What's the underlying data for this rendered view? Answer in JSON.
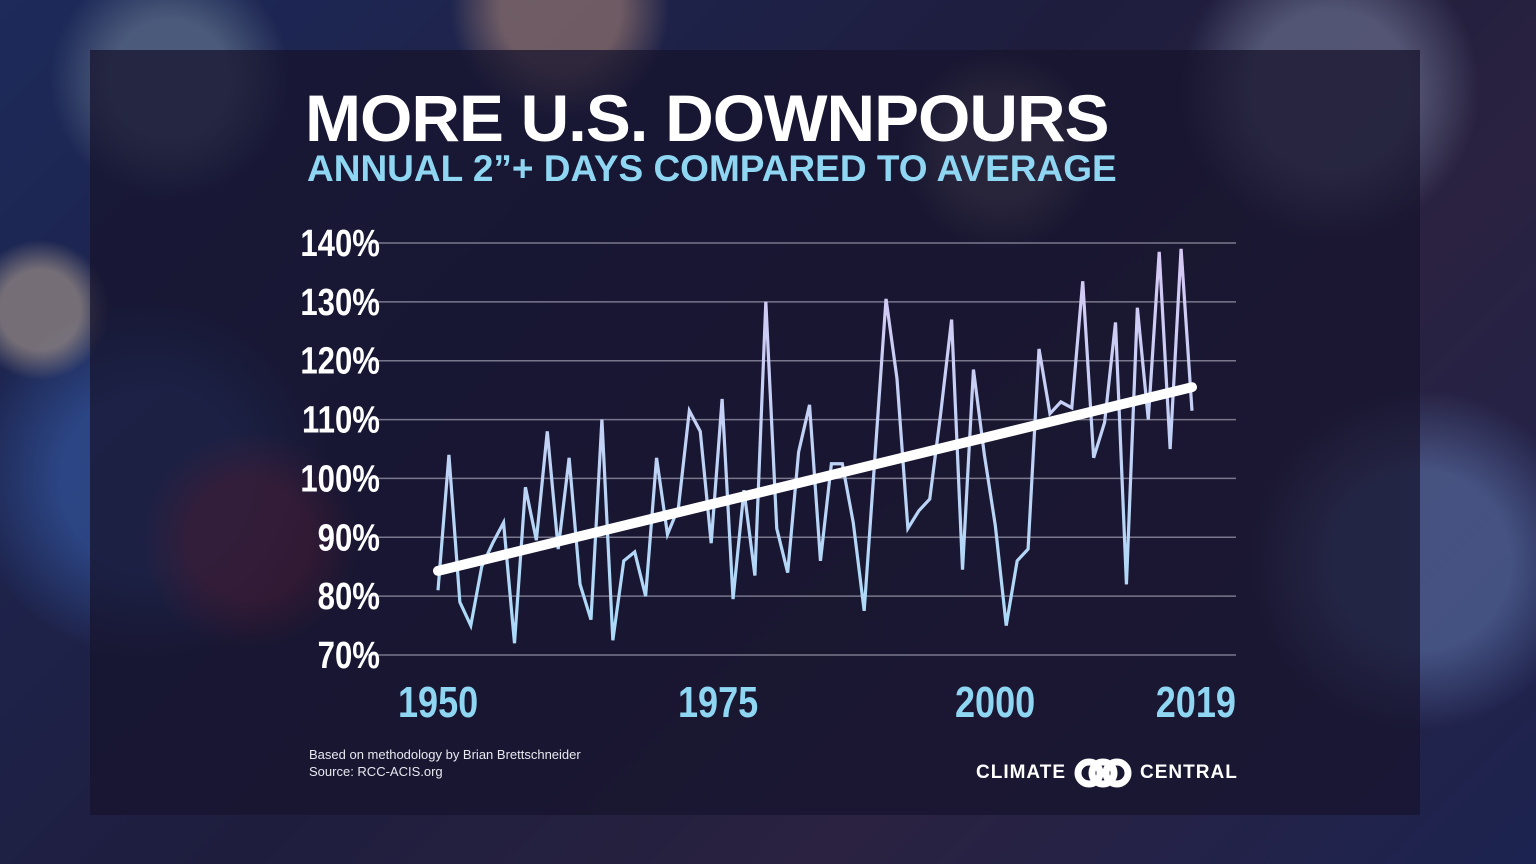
{
  "chart_data": {
    "type": "line",
    "title": "MORE U.S. DOWNPOURS",
    "subtitle": "ANNUAL 2”+ DAYS COMPARED TO AVERAGE",
    "xlabel": "",
    "ylabel": "",
    "x_range": [
      1950,
      2019
    ],
    "ylim": [
      70,
      140
    ],
    "y_ticks": [
      "70%",
      "80%",
      "90%",
      "100%",
      "110%",
      "120%",
      "130%",
      "140%"
    ],
    "y_tick_values": [
      70,
      80,
      90,
      100,
      110,
      120,
      130,
      140
    ],
    "x_ticks": [
      "1950",
      "1975",
      "2000",
      "2019"
    ],
    "x_tick_values": [
      1950,
      1975,
      2000,
      2019
    ],
    "grid": "horizontal",
    "series": [
      {
        "x": [
          1950,
          1951,
          1952,
          1953,
          1954,
          1955,
          1956,
          1957,
          1958,
          1959,
          1960,
          1961,
          1962,
          1963,
          1964,
          1965,
          1966,
          1967,
          1968,
          1969,
          1970,
          1971,
          1972,
          1973,
          1974,
          1975,
          1976,
          1977,
          1978,
          1979,
          1980,
          1981,
          1982,
          1983,
          1984,
          1985,
          1986,
          1987,
          1988,
          1989,
          1990,
          1991,
          1992,
          1993,
          1994,
          1995,
          1996,
          1997,
          1998,
          1999,
          2000,
          2001,
          2002,
          2003,
          2004,
          2005,
          2006,
          2007,
          2008,
          2009,
          2010,
          2011,
          2012,
          2013,
          2014,
          2015,
          2016,
          2017,
          2018,
          2019
        ],
        "values": [
          81,
          104,
          79,
          75,
          85,
          89,
          92.5,
          72,
          98.5,
          89.5,
          108,
          88,
          103.5,
          82,
          76,
          110,
          72.5,
          86,
          87.5,
          80,
          103.5,
          90.5,
          95,
          111.5,
          108,
          89,
          113.5,
          79.5,
          98,
          83.5,
          130,
          91.5,
          84,
          104.5,
          112.5,
          86,
          102.5,
          102.5,
          92.5,
          77.5,
          104,
          130.5,
          117,
          91.5,
          94.5,
          96.5,
          111,
          127,
          84.5,
          118.5,
          104,
          92,
          75,
          86,
          88,
          122,
          111,
          113,
          112,
          133.5,
          103.5,
          109.5,
          126.5,
          82,
          129,
          110,
          138.5,
          105,
          139,
          111.5
        ],
        "color_low": "#a8dcf8",
        "color_high": "#d8c8f4"
      },
      {
        "kind": "trend",
        "x": [
          1950,
          2019
        ],
        "values": [
          84.3,
          115.5
        ],
        "color": "#ffffff"
      }
    ]
  },
  "footnote": {
    "methodology": "Based on methodology by Brian Brettschneider",
    "source": "Source: RCC-ACIS.org"
  },
  "logo": {
    "left": "CLIMATE",
    "right": "CENTRAL"
  }
}
